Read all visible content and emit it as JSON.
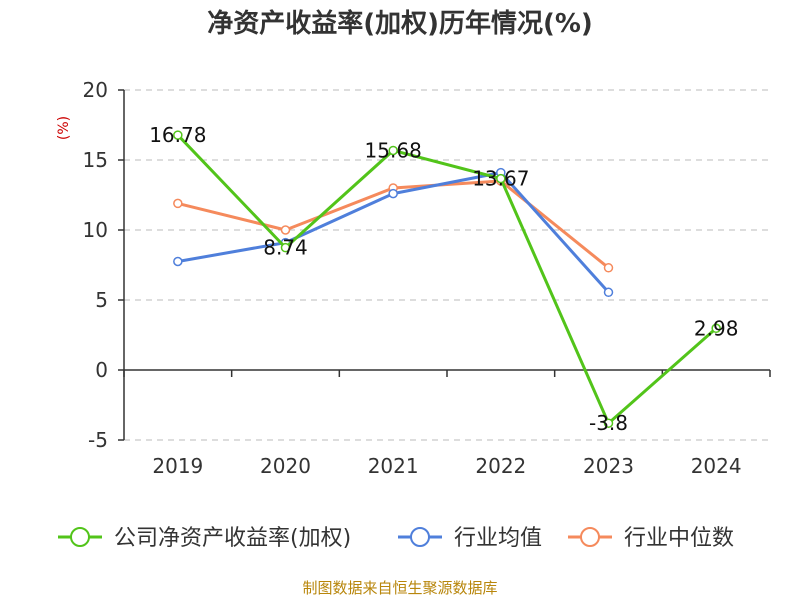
{
  "colors": {
    "company": "#52c41a",
    "industry_avg": "#4f7fdb",
    "industry_median": "#f58a5c",
    "source": "#b8860b",
    "unit": "#cc0000"
  },
  "chart_data": {
    "type": "line",
    "title": "净资产收益率(加权)历年情况(%)",
    "ylabel": "(%)",
    "xlabel": "",
    "categories": [
      "2019",
      "2020",
      "2021",
      "2022",
      "2023",
      "2024"
    ],
    "ylim": [
      -5,
      20
    ],
    "yticks": [
      -5,
      0,
      5,
      10,
      15,
      20
    ],
    "grid": true,
    "legend_position": "bottom",
    "series": [
      {
        "key": "company",
        "name": "公司净资产收益率(加权)",
        "values": [
          16.78,
          8.74,
          15.68,
          13.67,
          -3.8,
          2.98
        ],
        "labels": [
          "16.78",
          "8.74",
          "15.68",
          "13.67",
          "-3.8",
          "2.98"
        ]
      },
      {
        "key": "industry_avg",
        "name": "行业均值",
        "values": [
          7.75,
          9.1,
          12.6,
          14.1,
          5.55,
          null
        ]
      },
      {
        "key": "industry_median",
        "name": "行业中位数",
        "values": [
          11.9,
          10.0,
          13.0,
          13.5,
          7.3,
          null
        ]
      }
    ],
    "source": "制图数据来自恒生聚源数据库"
  }
}
